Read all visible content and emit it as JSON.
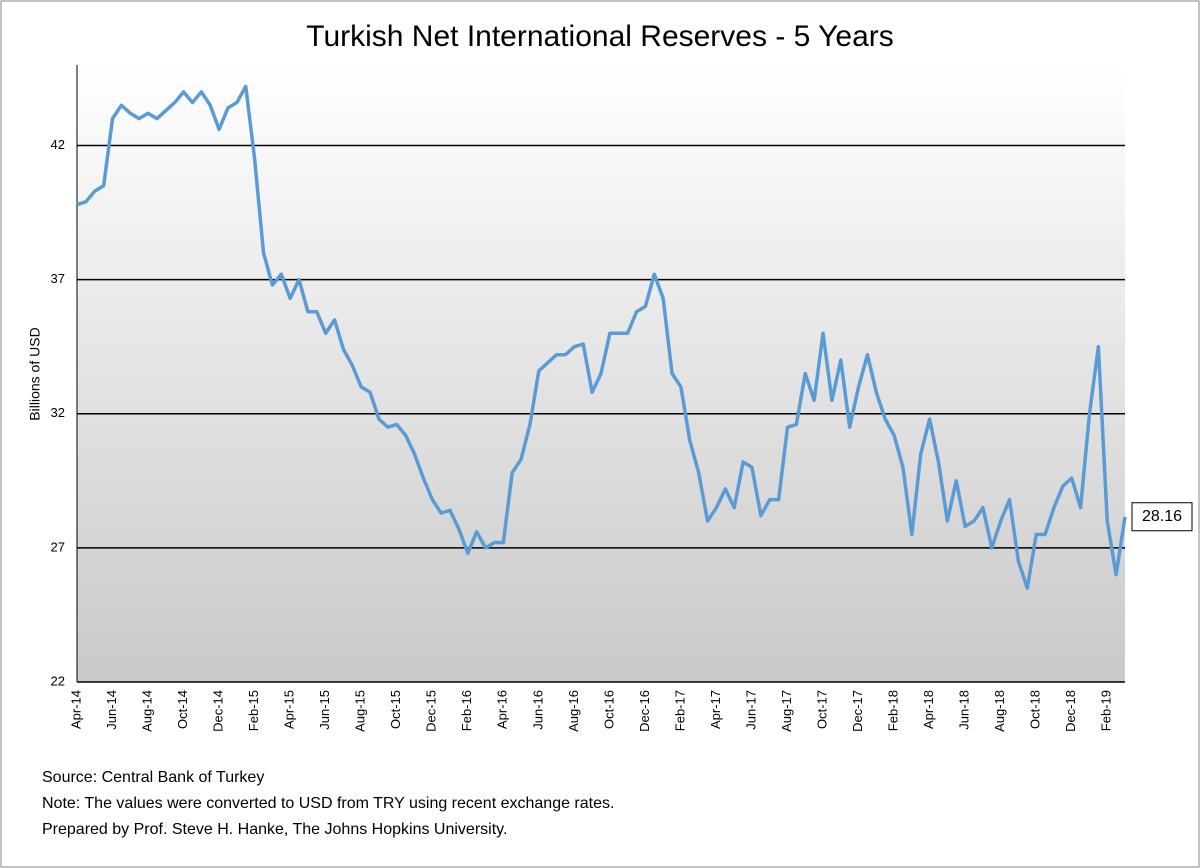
{
  "chart_data": {
    "type": "line",
    "title": "Turkish Net International Reserves - 5 Years",
    "y_label": "Billions of USD",
    "notes": [
      "Source: Central Bank of Turkey",
      "Note: The values were converted to USD from TRY using recent exchange rates.",
      "Prepared by Prof. Steve H. Hanke, The Johns Hopkins University."
    ],
    "categories": [
      "Apr-14",
      null,
      null,
      null,
      "Jun-14",
      null,
      null,
      null,
      "Aug-14",
      null,
      null,
      null,
      "Oct-14",
      null,
      null,
      null,
      "Dec-14",
      null,
      null,
      null,
      "Feb-15",
      null,
      null,
      null,
      "Apr-15",
      null,
      null,
      null,
      "Jun-15",
      null,
      null,
      null,
      "Aug-15",
      null,
      null,
      null,
      "Oct-15",
      null,
      null,
      null,
      "Dec-15",
      null,
      null,
      null,
      "Feb-16",
      null,
      null,
      null,
      "Apr-16",
      null,
      null,
      null,
      "Jun-16",
      null,
      null,
      null,
      "Aug-16",
      null,
      null,
      null,
      "Oct-16",
      null,
      null,
      null,
      "Dec-16",
      null,
      null,
      null,
      "Feb-17",
      null,
      null,
      null,
      "Apr-17",
      null,
      null,
      null,
      "Jun-17",
      null,
      null,
      null,
      "Aug-17",
      null,
      null,
      null,
      "Oct-17",
      null,
      null,
      null,
      "Dec-17",
      null,
      null,
      null,
      "Feb-18",
      null,
      null,
      null,
      "Apr-18",
      null,
      null,
      null,
      "Jun-18",
      null,
      null,
      null,
      "Aug-18",
      null,
      null,
      null,
      "Oct-18",
      null,
      null,
      null,
      "Dec-18",
      null,
      null,
      null,
      "Feb-19",
      null,
      null
    ],
    "series": [
      {
        "name": "Net International Reserves",
        "color": "#5b9bd5",
        "values": [
          39.8,
          39.9,
          40.3,
          40.5,
          43.0,
          43.5,
          43.2,
          43.0,
          43.2,
          43.0,
          43.3,
          43.6,
          44.0,
          43.6,
          44.0,
          43.5,
          42.6,
          43.4,
          43.6,
          44.2,
          41.5,
          38.0,
          36.8,
          37.2,
          36.3,
          37.0,
          35.8,
          35.8,
          35.0,
          35.5,
          34.4,
          33.8,
          33.0,
          32.8,
          31.8,
          31.5,
          31.6,
          31.2,
          30.5,
          29.6,
          28.8,
          28.3,
          28.4,
          27.7,
          26.8,
          27.6,
          27.0,
          27.2,
          27.2,
          29.8,
          30.3,
          31.6,
          33.6,
          33.9,
          34.2,
          34.2,
          34.5,
          34.6,
          32.8,
          33.5,
          35.0,
          35.0,
          35.0,
          35.8,
          36.0,
          37.2,
          36.3,
          33.5,
          33.0,
          31.0,
          29.8,
          28.0,
          28.5,
          29.2,
          28.5,
          30.2,
          30.0,
          28.2,
          28.8,
          28.8,
          31.5,
          31.6,
          33.5,
          32.5,
          35.0,
          32.5,
          34.0,
          31.5,
          33.0,
          34.2,
          32.8,
          31.8,
          31.2,
          30.0,
          27.5,
          30.5,
          31.8,
          30.2,
          28.0,
          29.5,
          27.8,
          28.0,
          28.5,
          27.0,
          28.0,
          28.8,
          26.5,
          25.5,
          27.5,
          27.5,
          28.5,
          29.3,
          29.6,
          28.5,
          32.0,
          34.5,
          28.0,
          26.0,
          28.16
        ]
      }
    ],
    "ylim": [
      22,
      45
    ],
    "yticks": [
      22,
      27,
      32,
      37,
      42
    ],
    "grid": true
  }
}
